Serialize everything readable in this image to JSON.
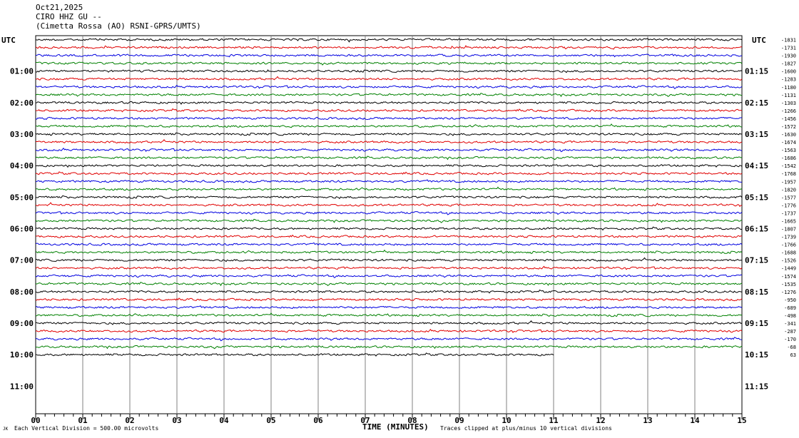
{
  "header": {
    "date": "Oct21,2025",
    "station": "CIRO HHZ GU --",
    "location": "(Cimetta Rossa (AO) RSNI-GPRS/UMTS)"
  },
  "left_axis_label": "UTC",
  "right_axis_label": "UTC",
  "footer": {
    "corner_mark": "JK",
    "vertical_division": "Each Vertical Division =  500.00 microvolts",
    "xlabel": "TIME (MINUTES)",
    "clip_note": "Traces clipped at plus/minus 10 vertical divisions"
  },
  "colors": {
    "trace_cycle": [
      "#000000",
      "#e00000",
      "#0000e0",
      "#008000"
    ],
    "grid": "#808080"
  },
  "chart_data": {
    "type": "line",
    "title": "",
    "xlabel": "TIME (MINUTES)",
    "ylabel": "",
    "xlim": [
      0,
      15
    ],
    "x_ticks": [
      "00",
      "01",
      "02",
      "03",
      "04",
      "05",
      "06",
      "07",
      "08",
      "09",
      "10",
      "11",
      "12",
      "13",
      "14",
      "15"
    ],
    "grid": true,
    "hour_labels_left": [
      "01:00",
      "02:00",
      "03:00",
      "04:00",
      "05:00",
      "06:00",
      "07:00",
      "08:00",
      "09:00",
      "10:00",
      "11:00"
    ],
    "hour_labels_right": [
      "01:15",
      "02:15",
      "03:15",
      "04:15",
      "05:15",
      "06:15",
      "07:15",
      "08:15",
      "09:15",
      "10:15",
      "11:15"
    ],
    "trace_offsets": [
      "-1831",
      "-1731",
      "-1930",
      "-1827",
      "-1600",
      "-1283",
      "-1180",
      "-1131",
      "-1303",
      "-1266",
      "-1456",
      "-1572",
      "-1630",
      "-1674",
      "-1563",
      "-1686",
      "-1542",
      "-1768",
      "-1957",
      "-1820",
      "-1577",
      "-1776",
      "-1737",
      "-1665",
      "-1807",
      "-1739",
      "-1766",
      "-1688",
      "-1526",
      "-1449",
      "-1574",
      "-1535",
      "-1276",
      "-950",
      "-689",
      "-498",
      "-341",
      "-287",
      "-170",
      "-68",
      "63"
    ],
    "last_trace_end_minute": 11,
    "total_rows": 48
  }
}
